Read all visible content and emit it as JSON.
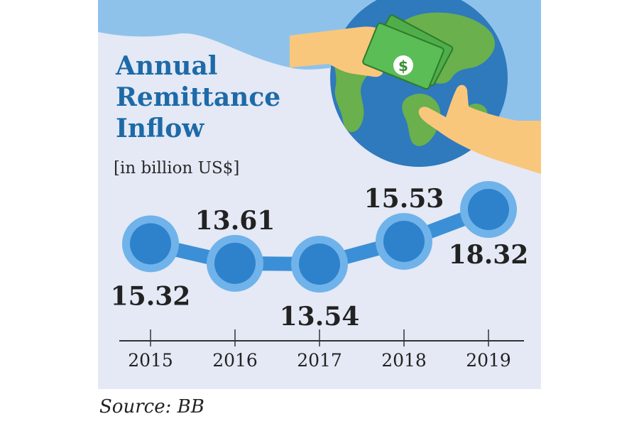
{
  "title_lines": [
    "Annual",
    "Remittance",
    "Inflow"
  ],
  "subtitle": "[in billion US$]",
  "source": "Source: BB",
  "colors": {
    "background": "#e4e9f5",
    "sky": "#8fc2ea",
    "title": "#1d6aa8",
    "line": "#3b8fd6",
    "marker_outer": "#6fb3ea",
    "marker_inner": "#2e82cb",
    "ocean": "#2f79bd",
    "land": "#6ab04c",
    "skin": "#f9c77b",
    "money": "#4fae4a",
    "text": "#222222"
  },
  "illustration": {
    "globe": "globe-icon",
    "hand_left": "hand-icon",
    "hand_right": "hand-icon",
    "banknotes": "dollar-banknote-icon"
  },
  "chart_data": {
    "type": "line",
    "categories": [
      "2015",
      "2016",
      "2017",
      "2018",
      "2019"
    ],
    "values": [
      15.32,
      13.61,
      13.54,
      15.53,
      18.32
    ],
    "value_labels": [
      "15.32",
      "13.61",
      "13.54",
      "15.53",
      "18.32"
    ],
    "label_positions": [
      "below",
      "above",
      "below",
      "above",
      "below"
    ],
    "title": "Annual Remittance Inflow",
    "ylabel": "[in billion US$]",
    "xlabel": "",
    "grid": false,
    "legend": "none"
  }
}
